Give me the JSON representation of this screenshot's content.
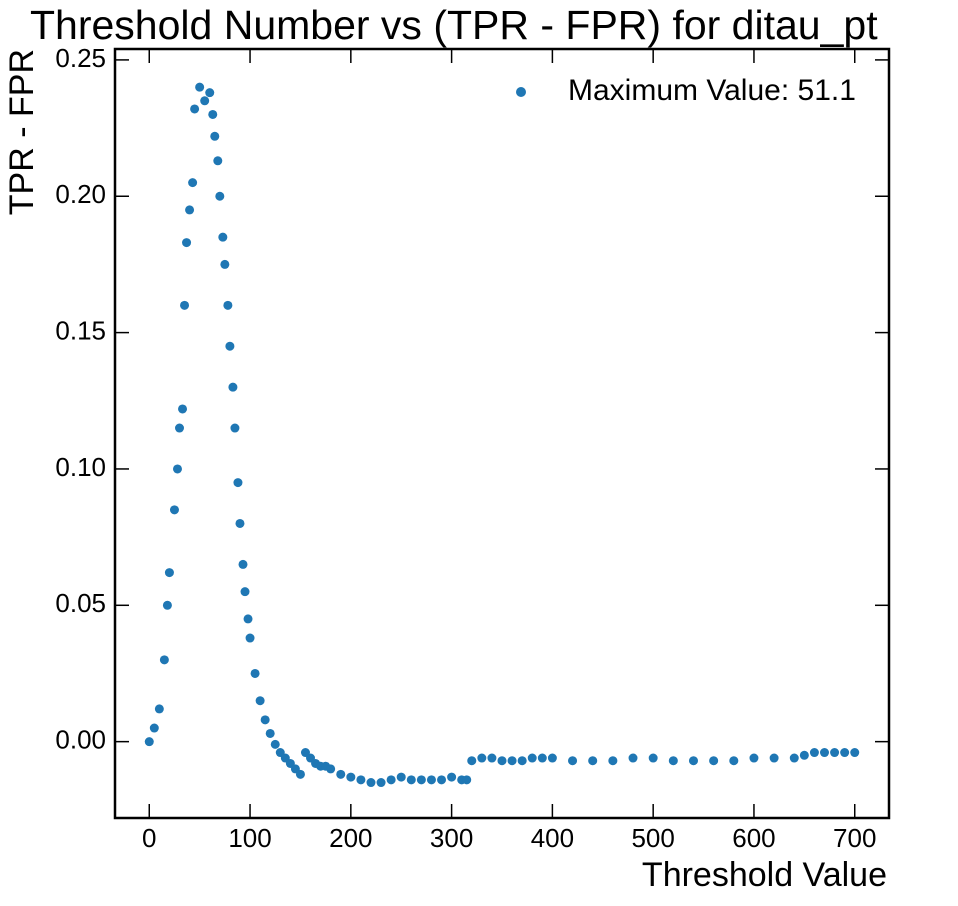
{
  "chart_data": {
    "type": "scatter",
    "title": "Threshold Number vs (TPR - FPR) for ditau_pt",
    "xlabel": "Threshold Value",
    "ylabel": "TPR - FPR",
    "legend_loc": "upper right",
    "xlim": [
      -34,
      734
    ],
    "ylim": [
      -0.028,
      0.254
    ],
    "xticks": [
      0,
      100,
      200,
      300,
      400,
      500,
      600,
      700
    ],
    "yticks": [
      {
        "value": 0,
        "label": "0.00"
      },
      {
        "value": 0.05,
        "label": "0.05"
      },
      {
        "value": 0.1,
        "label": "0.10"
      },
      {
        "value": 0.15,
        "label": "0.15"
      },
      {
        "value": 0.2,
        "label": "0.20"
      },
      {
        "value": 0.25,
        "label": "0.25"
      }
    ],
    "x": [
      0,
      5,
      10,
      15,
      18,
      20,
      25,
      28,
      30,
      33,
      35,
      37,
      40,
      43,
      45,
      50,
      55,
      60,
      63,
      65,
      68,
      70,
      73,
      75,
      78,
      80,
      83,
      85,
      88,
      90,
      93,
      95,
      98,
      100,
      105,
      110,
      115,
      120,
      125,
      130,
      135,
      140,
      145,
      150,
      155,
      160,
      165,
      170,
      175,
      180,
      190,
      200,
      210,
      220,
      230,
      240,
      250,
      260,
      270,
      280,
      290,
      300,
      310,
      315,
      320,
      330,
      340,
      350,
      360,
      370,
      380,
      390,
      400,
      420,
      440,
      460,
      480,
      500,
      520,
      540,
      560,
      580,
      600,
      620,
      640,
      650,
      660,
      670,
      680,
      690,
      700
    ],
    "series": [
      {
        "name": "Maximum Value: 51.1",
        "color": "#1f77b4",
        "values": [
          0.0,
          0.005,
          0.012,
          0.03,
          0.05,
          0.062,
          0.085,
          0.1,
          0.115,
          0.122,
          0.16,
          0.183,
          0.195,
          0.205,
          0.232,
          0.24,
          0.235,
          0.238,
          0.23,
          0.222,
          0.213,
          0.2,
          0.185,
          0.175,
          0.16,
          0.145,
          0.13,
          0.115,
          0.095,
          0.08,
          0.065,
          0.055,
          0.045,
          0.038,
          0.025,
          0.015,
          0.008,
          0.003,
          -0.001,
          -0.004,
          -0.006,
          -0.008,
          -0.01,
          -0.012,
          -0.004,
          -0.006,
          -0.008,
          -0.009,
          -0.009,
          -0.01,
          -0.012,
          -0.013,
          -0.014,
          -0.015,
          -0.015,
          -0.014,
          -0.013,
          -0.014,
          -0.014,
          -0.014,
          -0.014,
          -0.013,
          -0.014,
          -0.014,
          -0.007,
          -0.006,
          -0.006,
          -0.007,
          -0.007,
          -0.007,
          -0.006,
          -0.006,
          -0.006,
          -0.007,
          -0.007,
          -0.007,
          -0.006,
          -0.006,
          -0.007,
          -0.007,
          -0.007,
          -0.007,
          -0.006,
          -0.006,
          -0.006,
          -0.005,
          -0.004,
          -0.004,
          -0.004,
          -0.004,
          -0.004
        ]
      }
    ]
  }
}
